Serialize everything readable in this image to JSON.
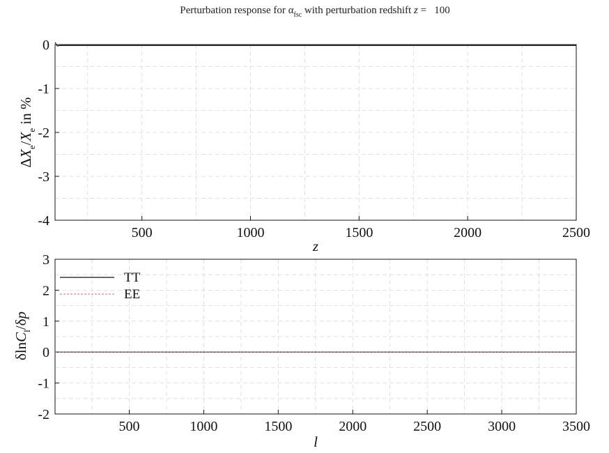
{
  "figure": {
    "title_prefix": "Perturbation response for ",
    "title_symbol": "α",
    "title_symbol_sub": "fsc",
    "title_suffix": " with perturbation redshift ",
    "title_var": "z",
    "title_eq": " =   100"
  },
  "colors": {
    "tt_line": "#111111",
    "ee_line": "#d9646e",
    "grid": "#d9d9d9",
    "axes": "#111111"
  },
  "chart_data": [
    {
      "type": "line",
      "title": "",
      "xlabel": "z",
      "ylabel_parts": {
        "delta": "Δ",
        "X": "X",
        "sub": "e",
        "slash": "/",
        "X2": "X",
        "sub2": "e",
        "tail": " in %"
      },
      "xlim": [
        100,
        2500
      ],
      "ylim": [
        -4,
        0
      ],
      "xticks": [
        500,
        1000,
        1500,
        2000,
        2500
      ],
      "yticks": [
        0,
        -1,
        -2,
        -3,
        -4
      ],
      "grid": true,
      "series": [
        {
          "x": [
            100,
            110,
            125,
            150,
            200,
            300,
            500,
            1000,
            1500,
            2000,
            2500
          ],
          "y": [
            0.05,
            -0.03,
            -0.02,
            -0.02,
            -0.02,
            -0.02,
            -0.02,
            -0.02,
            -0.02,
            -0.02,
            -0.02
          ]
        }
      ]
    },
    {
      "type": "line",
      "title": "",
      "xlabel": "l",
      "ylabel_parts": {
        "pre": "δln",
        "C": "C",
        "sub": "l",
        "post": "/δ",
        "p": "p"
      },
      "xlim": [
        2,
        3500
      ],
      "ylim": [
        -2,
        3
      ],
      "xticks": [
        500,
        1000,
        1500,
        2000,
        2500,
        3000,
        3500
      ],
      "yticks": [
        3,
        2,
        1,
        0,
        -1,
        -2
      ],
      "grid": true,
      "legend_position": "top-left",
      "series": [
        {
          "name": "TT",
          "x": [
            2,
            500,
            1000,
            1500,
            2000,
            2500,
            3000,
            3500
          ],
          "y": [
            0,
            0,
            0,
            0,
            0,
            0,
            0,
            0
          ]
        },
        {
          "name": "EE",
          "x": [
            2,
            500,
            1000,
            1500,
            2000,
            2500,
            3000,
            3500
          ],
          "y": [
            0,
            0,
            0,
            0,
            0,
            0,
            0,
            0
          ]
        }
      ]
    }
  ]
}
